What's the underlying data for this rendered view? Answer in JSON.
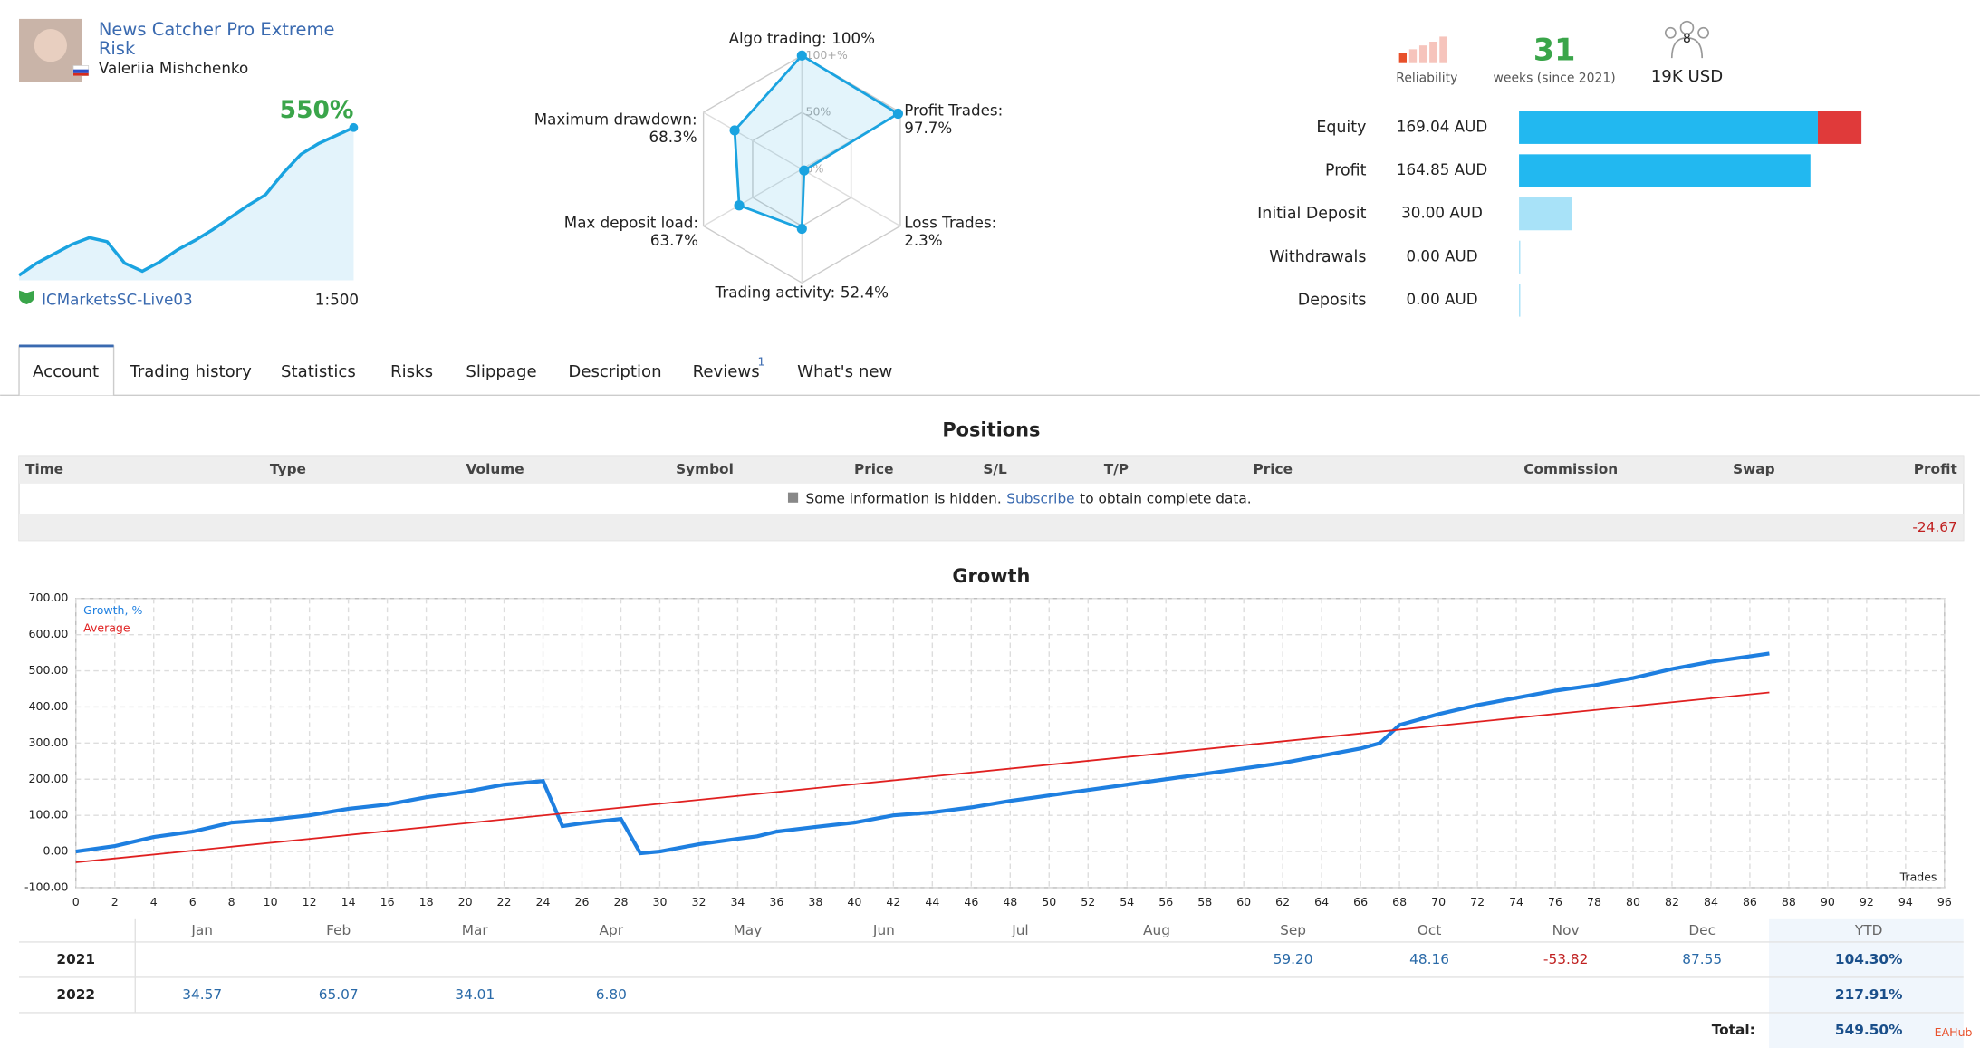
{
  "header": {
    "title_lines": [
      "News Catcher Pro Extreme",
      "Risk"
    ],
    "author": "Valeriia Mishchenko",
    "broker": "ICMarketsSC-Live03",
    "leverage": "1:500",
    "reliability": "Reliability",
    "weeks": "31",
    "weeks_label": "weeks (since 2021)",
    "subscribers": "8",
    "funds": "19K USD"
  },
  "tabs": {
    "items": [
      "Account",
      "Trading history",
      "Statistics",
      "Risks",
      "Slippage",
      "Description",
      "Reviews",
      "What's new"
    ],
    "reviews_badge": "1"
  },
  "positions": {
    "title": "Positions",
    "headers": [
      "Time",
      "Type",
      "Volume",
      "Symbol",
      "Price",
      "S/L",
      "T/P",
      "Price",
      "Commission",
      "Swap",
      "Profit"
    ],
    "notice": "Some information is hidden.",
    "link": "Subscribe",
    "notice_end": "to obtain complete data.",
    "profit": -24.67
  },
  "growth_title": "Growth",
  "chart_data": [
    {
      "type": "line",
      "x_label": "Trades",
      "series": [
        {
          "name": "Growth, %",
          "color": "#1e7fe0",
          "x": [
            0,
            2,
            4,
            6,
            8,
            10,
            12,
            14,
            16,
            18,
            20,
            22,
            24,
            25,
            26,
            28,
            29,
            30,
            32,
            34,
            35,
            36,
            38,
            40,
            42,
            44,
            46,
            48,
            50,
            52,
            54,
            56,
            58,
            60,
            62,
            64,
            66,
            67,
            68,
            70,
            72,
            74,
            76,
            78,
            80,
            82,
            84,
            86,
            87
          ],
          "values": [
            0,
            15,
            40,
            55,
            80,
            88,
            100,
            118,
            130,
            150,
            165,
            185,
            195,
            70,
            78,
            90,
            -5,
            0,
            20,
            35,
            42,
            55,
            68,
            80,
            100,
            108,
            122,
            140,
            155,
            170,
            185,
            200,
            215,
            230,
            245,
            265,
            285,
            300,
            350,
            380,
            405,
            425,
            445,
            460,
            480,
            505,
            525,
            540,
            548
          ]
        },
        {
          "name": "Average",
          "color": "#e02020",
          "x": [
            0,
            87
          ],
          "values": [
            -30,
            440
          ]
        }
      ],
      "xlim": [
        0,
        96
      ],
      "xticks": [
        0,
        2,
        4,
        6,
        8,
        10,
        12,
        14,
        16,
        18,
        20,
        22,
        24,
        26,
        28,
        30,
        32,
        34,
        36,
        38,
        40,
        42,
        44,
        46,
        48,
        50,
        52,
        54,
        56,
        58,
        60,
        62,
        64,
        66,
        68,
        70,
        72,
        74,
        76,
        78,
        80,
        82,
        84,
        86,
        88,
        90,
        92,
        94,
        96
      ],
      "ylim": [
        -100,
        700
      ],
      "yticks": [
        {
          "value": -100,
          "label": "-100.00"
        },
        {
          "value": 0,
          "label": "0.00"
        },
        {
          "value": 100,
          "label": "100.00"
        },
        {
          "value": 200,
          "label": "200.00"
        },
        {
          "value": 300,
          "label": "300.00"
        },
        {
          "value": 400,
          "label": "400.00"
        },
        {
          "value": 500,
          "label": "500.00"
        },
        {
          "value": 600,
          "label": "600.00"
        },
        {
          "value": 700,
          "label": "700.00"
        }
      ],
      "grid": true
    },
    {
      "type": "radar",
      "categories": [
        "Algo trading:",
        "Profit Trades:",
        "Loss Trades:",
        "Trading activity:",
        "Max deposit load:",
        "Maximum drawdown:"
      ],
      "values": [
        100,
        97.7,
        2.3,
        52.4,
        63.7,
        68.3
      ],
      "value_labels": [
        "100%",
        "97.7%",
        "2.3%",
        "52.4%",
        "63.7%",
        "68.3%"
      ],
      "color": "#1aa3e0",
      "rlim": [
        0,
        100
      ],
      "rticks": [
        {
          "value": 0,
          "label": "0%"
        },
        {
          "value": 50,
          "label": "50%"
        },
        {
          "value": 100,
          "label": "100+%"
        }
      ]
    },
    {
      "type": "sparkline",
      "annotation": "550%",
      "color": "#1aa3e0",
      "values": [
        0,
        45,
        80,
        115,
        140,
        125,
        45,
        15,
        50,
        95,
        130,
        170,
        215,
        260,
        300,
        380,
        450,
        490,
        520,
        550
      ],
      "ylim": [
        0,
        550
      ]
    },
    {
      "type": "hbar",
      "categories": [
        "Equity",
        "Profit",
        "Initial Deposit",
        "Withdrawals",
        "Deposits"
      ],
      "values": [
        169.04,
        164.85,
        30.0,
        0,
        0
      ],
      "value_labels": [
        "169.04 AUD",
        "164.85 AUD",
        "30.00 AUD",
        "0.00 AUD",
        "0.00 AUD"
      ],
      "colors": [
        "#22b8f0",
        "#22b8f0",
        "#a8e2f8",
        "#a8e2f8",
        "#a8e2f8"
      ],
      "xlim": [
        0,
        200
      ]
    }
  ],
  "yearly": {
    "headers": [
      "Jan",
      "Feb",
      "Mar",
      "Apr",
      "May",
      "Jun",
      "Jul",
      "Aug",
      "Sep",
      "Oct",
      "Nov",
      "Dec",
      "YTD"
    ],
    "rows": [
      {
        "year": "2021",
        "months": [
          null,
          null,
          null,
          null,
          null,
          null,
          null,
          null,
          "59.20",
          "48.16",
          "-53.82",
          "87.55"
        ],
        "ytd": "104.30%"
      },
      {
        "year": "2022",
        "months": [
          "34.57",
          "65.07",
          "34.01",
          "6.80",
          null,
          null,
          null,
          null,
          null,
          null,
          null,
          null
        ],
        "ytd": "217.91%"
      }
    ],
    "total_label": "Total:",
    "total": "549.50%"
  },
  "watermark": "EAHub"
}
